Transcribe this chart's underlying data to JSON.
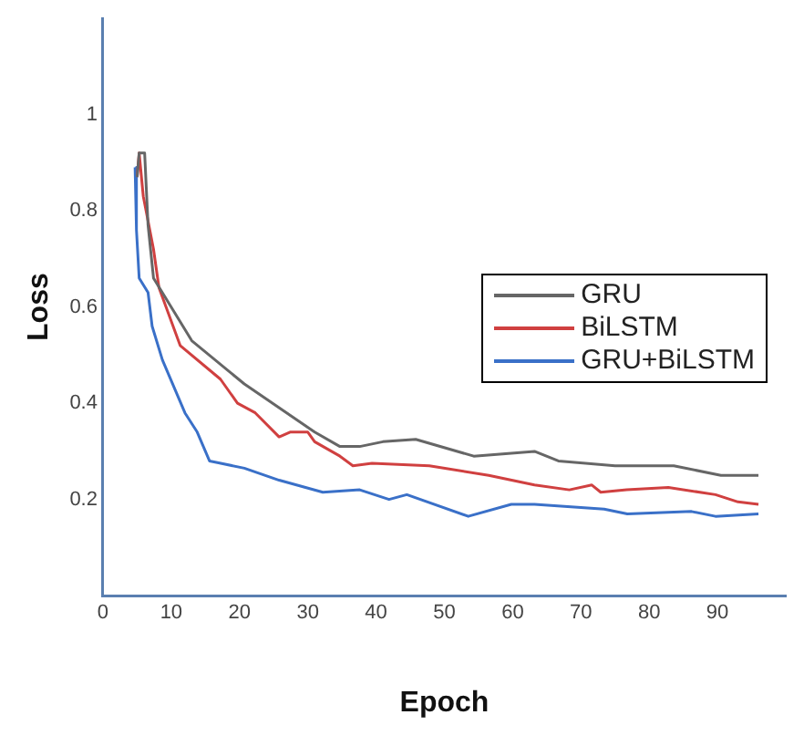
{
  "chart_data": {
    "type": "line",
    "xlabel": "Epoch",
    "ylabel": "Loss",
    "xlim": [
      0,
      100
    ],
    "xticks": [
      0,
      10,
      20,
      30,
      40,
      50,
      60,
      70,
      80,
      90
    ],
    "ylim": [
      0,
      1.2
    ],
    "yticks": [
      0.2,
      0.4,
      0.6,
      0.8,
      1
    ],
    "grid": false,
    "legend": "right",
    "marker": "none",
    "line_style": "solid",
    "series": [
      {
        "name": "GRU",
        "color": "#666666",
        "x": [
          5,
          5.3,
          6.1,
          6.6,
          7.4,
          13,
          20.7,
          31,
          34.7,
          37.6,
          41,
          45.8,
          54.3,
          63.2,
          66.7,
          75,
          83.6,
          90.5,
          96
        ],
        "values": [
          0.87,
          0.92,
          0.92,
          0.77,
          0.66,
          0.53,
          0.44,
          0.34,
          0.31,
          0.31,
          0.32,
          0.325,
          0.29,
          0.3,
          0.28,
          0.27,
          0.27,
          0.25,
          0.25
        ]
      },
      {
        "name": "BiLSTM",
        "color": "#d04040",
        "x": [
          5,
          5.3,
          5.9,
          7.4,
          8.2,
          11.3,
          17.2,
          19.7,
          22.3,
          25.8,
          27.4,
          30,
          31,
          34.7,
          36.6,
          39.4,
          47.8,
          56.5,
          63.2,
          68.3,
          71.6,
          72.9,
          76.7,
          82.8,
          89.7,
          93,
          96
        ],
        "values": [
          0.87,
          0.92,
          0.83,
          0.72,
          0.64,
          0.52,
          0.45,
          0.4,
          0.38,
          0.33,
          0.34,
          0.34,
          0.32,
          0.29,
          0.27,
          0.275,
          0.27,
          0.25,
          0.23,
          0.22,
          0.23,
          0.215,
          0.22,
          0.225,
          0.21,
          0.195,
          0.19
        ]
      },
      {
        "name": "GRU+BiLSTM",
        "color": "#3a70c8",
        "x": [
          4.7,
          4.9,
          5.3,
          6.6,
          7.2,
          8.7,
          12,
          13.8,
          15.6,
          20.7,
          25.8,
          32.2,
          37.6,
          41.9,
          44.5,
          53.5,
          59.8,
          63.2,
          73.4,
          76.8,
          86.2,
          89.7,
          96
        ],
        "values": [
          0.89,
          0.76,
          0.66,
          0.63,
          0.56,
          0.49,
          0.38,
          0.34,
          0.28,
          0.265,
          0.24,
          0.215,
          0.22,
          0.2,
          0.21,
          0.165,
          0.19,
          0.19,
          0.18,
          0.17,
          0.175,
          0.165,
          0.17
        ]
      }
    ]
  }
}
